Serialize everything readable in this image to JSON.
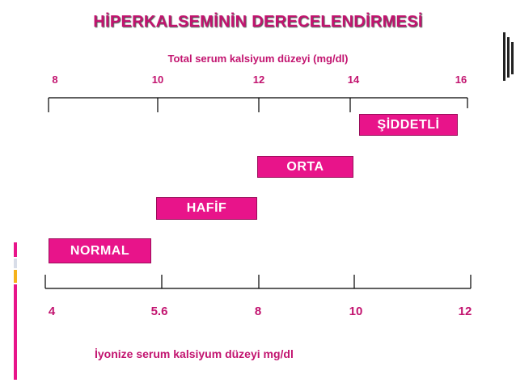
{
  "title": "HİPERKALSEMİNİN DERECELENDİRMESİ",
  "top_axis": {
    "label": "Total serum kalsiyum düzeyi (mg/dl)",
    "ticks": [
      "8",
      "10",
      "12",
      "14",
      "16"
    ]
  },
  "bottom_axis": {
    "label": "İyonize serum kalsiyum düzeyi mg/dl",
    "ticks": [
      "4",
      "5.6",
      "8",
      "10",
      "12"
    ]
  },
  "grades": [
    {
      "name": "NORMAL"
    },
    {
      "name": "HAFİF"
    },
    {
      "name": "ORTA"
    },
    {
      "name": "ŞİDDETLİ"
    }
  ],
  "colors": {
    "accent": "#c2136f",
    "box": "#e8148a"
  }
}
